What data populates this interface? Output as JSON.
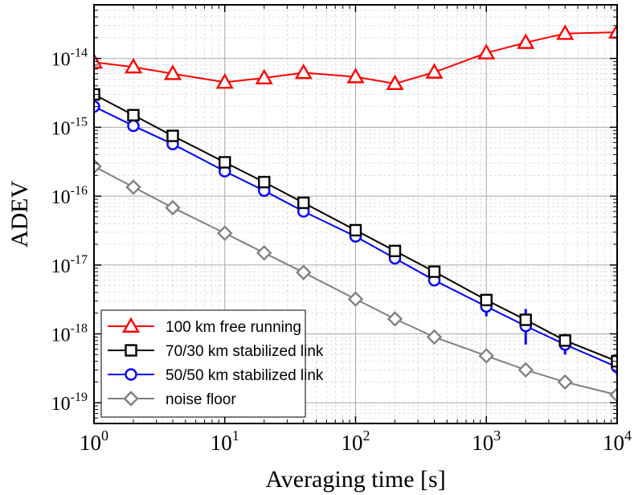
{
  "chart_data": {
    "type": "line",
    "xscale": "log",
    "yscale": "log",
    "xlabel": "Averaging time [s]",
    "ylabel": "ADEV",
    "xlim": [
      1,
      10000
    ],
    "ylim": [
      5e-20,
      6e-14
    ],
    "x_ticks": [
      {
        "value": 1,
        "base": "10",
        "exp": "0"
      },
      {
        "value": 10,
        "base": "10",
        "exp": "1"
      },
      {
        "value": 100,
        "base": "10",
        "exp": "2"
      },
      {
        "value": 1000,
        "base": "10",
        "exp": "3"
      },
      {
        "value": 10000,
        "base": "10",
        "exp": "4"
      }
    ],
    "y_ticks": [
      {
        "value": 1e-19,
        "base": "10",
        "exp": "-19"
      },
      {
        "value": 1e-18,
        "base": "10",
        "exp": "-18"
      },
      {
        "value": 1e-17,
        "base": "10",
        "exp": "-17"
      },
      {
        "value": 1e-16,
        "base": "10",
        "exp": "-16"
      },
      {
        "value": 1e-15,
        "base": "10",
        "exp": "-15"
      },
      {
        "value": 1e-14,
        "base": "10",
        "exp": "-14"
      }
    ],
    "grid": true,
    "legend_position": "bottom-left",
    "series": [
      {
        "name": "100 km free running",
        "color": "#ff0000",
        "marker": "triangle",
        "x": [
          1,
          2,
          4,
          10,
          20,
          40,
          100,
          200,
          400,
          1000,
          2000,
          4000,
          10000
        ],
        "y": [
          8.8e-15,
          7.5e-15,
          6e-15,
          4.5e-15,
          5.2e-15,
          6.2e-15,
          5.4e-15,
          4.3e-15,
          6.3e-15,
          1.2e-14,
          1.7e-14,
          2.3e-14,
          2.4e-14
        ]
      },
      {
        "name": "70/30 km stabilized link",
        "color": "#000000",
        "marker": "square",
        "x": [
          1,
          2,
          4,
          10,
          20,
          40,
          100,
          200,
          400,
          1000,
          2000,
          4000,
          10000
        ],
        "y": [
          3e-15,
          1.5e-15,
          7.5e-16,
          3.1e-16,
          1.6e-16,
          8e-17,
          3.2e-17,
          1.6e-17,
          8e-18,
          3.1e-18,
          1.6e-18,
          8e-19,
          4e-19
        ]
      },
      {
        "name": "50/50 km stabilized link",
        "color": "#0000ff",
        "marker": "circle",
        "x": [
          1,
          2,
          4,
          10,
          20,
          40,
          100,
          200,
          400,
          1000,
          2000,
          4000,
          10000
        ],
        "y": [
          2e-15,
          1.05e-15,
          5.7e-16,
          2.3e-16,
          1.2e-16,
          6e-17,
          2.6e-17,
          1.25e-17,
          6e-18,
          2.5e-18,
          1.3e-18,
          7e-19,
          3.3e-19
        ],
        "error_low": [
          0,
          0,
          0,
          0,
          0,
          0,
          0,
          0,
          0,
          1.8e-18,
          7e-19,
          5e-19,
          2.5e-19
        ],
        "error_high": [
          0,
          0,
          0,
          0,
          0,
          0,
          0,
          0,
          0,
          3.2e-18,
          2.3e-18,
          1e-18,
          4.3e-19
        ]
      },
      {
        "name": "noise floor",
        "color": "#808080",
        "marker": "diamond",
        "x": [
          1,
          2,
          4,
          10,
          20,
          40,
          100,
          200,
          400,
          1000,
          2000,
          4000,
          10000
        ],
        "y": [
          2.7e-16,
          1.35e-16,
          6.8e-17,
          2.9e-17,
          1.5e-17,
          7.8e-18,
          3.2e-18,
          1.65e-18,
          9e-19,
          4.8e-19,
          3e-19,
          2e-19,
          1.3e-19
        ]
      }
    ]
  }
}
